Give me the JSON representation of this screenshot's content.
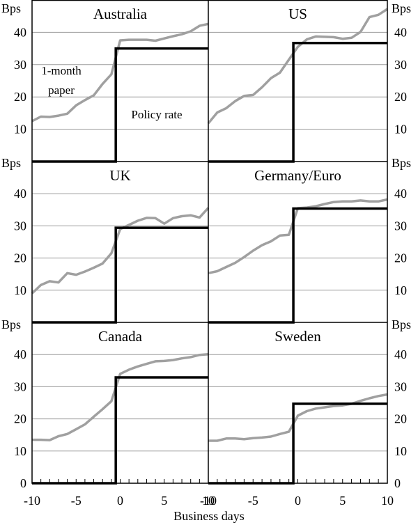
{
  "chart_data": {
    "type": "line",
    "x_label": "Business days",
    "y_unit": "Bps",
    "xlim": [
      -10,
      10
    ],
    "ylim": [
      0,
      50
    ],
    "y_ticks": [
      10,
      20,
      30,
      40
    ],
    "x_ticks": [
      -10,
      -5,
      0,
      5,
      10
    ],
    "x_tick_labels": [
      "-10",
      "-5",
      "0",
      "5",
      "10"
    ],
    "grid": "horizontal",
    "series_colors": {
      "market": "#a0a0a0",
      "policy": "#000000"
    },
    "annotations": {
      "market": "1-month paper",
      "policy": "Policy rate"
    },
    "panels": [
      {
        "title": "Australia",
        "x": [
          -10,
          -9,
          -8,
          -7,
          -6,
          -5,
          -4,
          -3,
          -2,
          -1,
          0,
          1,
          2,
          3,
          4,
          5,
          6,
          7,
          8,
          9,
          10
        ],
        "market": [
          12.5,
          13.9,
          13.8,
          14.2,
          14.8,
          17.4,
          19.0,
          20.5,
          24.0,
          27.0,
          37.5,
          37.7,
          37.7,
          37.7,
          37.4,
          38.1,
          38.8,
          39.4,
          40.3,
          42.0,
          42.6
        ],
        "policy_step_day": -0.5,
        "policy_before": 0,
        "policy_after": 35.0
      },
      {
        "title": "US",
        "x": [
          -10,
          -9,
          -8,
          -7,
          -6,
          -5,
          -4,
          -3,
          -2,
          -1,
          0,
          1,
          2,
          3,
          4,
          5,
          6,
          7,
          8,
          9,
          10
        ],
        "market": [
          11.8,
          15.2,
          16.5,
          18.7,
          20.3,
          20.6,
          23.0,
          25.8,
          27.5,
          31.5,
          35.5,
          37.8,
          38.7,
          38.6,
          38.5,
          38.0,
          38.3,
          40.1,
          44.7,
          45.4,
          47.2
        ],
        "policy_step_day": -0.5,
        "policy_before": 0,
        "policy_after": 36.7
      },
      {
        "title": "UK",
        "x": [
          -10,
          -9,
          -8,
          -7,
          -6,
          -5,
          -4,
          -3,
          -2,
          -1,
          0,
          1,
          2,
          3,
          4,
          5,
          6,
          7,
          8,
          9,
          10
        ],
        "market": [
          9.0,
          11.6,
          12.8,
          12.4,
          15.3,
          14.8,
          15.8,
          17.0,
          18.3,
          21.5,
          29.0,
          30.3,
          31.6,
          32.5,
          32.4,
          30.7,
          32.4,
          33.0,
          33.3,
          32.6,
          35.6
        ],
        "policy_step_day": -0.5,
        "policy_before": 0,
        "policy_after": 29.4
      },
      {
        "title": "Germany/Euro",
        "x": [
          -10,
          -9,
          -8,
          -7,
          -6,
          -5,
          -4,
          -3,
          -2,
          -1,
          0,
          1,
          2,
          3,
          4,
          5,
          6,
          7,
          8,
          9,
          10
        ],
        "market": [
          15.3,
          15.9,
          17.2,
          18.5,
          20.3,
          22.3,
          24.0,
          25.2,
          27.0,
          27.2,
          35.5,
          35.7,
          36.1,
          36.8,
          37.4,
          37.6,
          37.6,
          37.9,
          37.6,
          37.6,
          38.2
        ],
        "policy_step_day": -0.5,
        "policy_before": 0,
        "policy_after": 35.4
      },
      {
        "title": "Canada",
        "x": [
          -10,
          -9,
          -8,
          -7,
          -6,
          -5,
          -4,
          -3,
          -2,
          -1,
          0,
          1,
          2,
          3,
          4,
          5,
          6,
          7,
          8,
          9,
          10
        ],
        "market": [
          13.5,
          13.5,
          13.4,
          14.6,
          15.3,
          16.8,
          18.3,
          20.7,
          23.0,
          25.5,
          34.0,
          35.3,
          36.3,
          37.1,
          37.9,
          38.0,
          38.3,
          38.8,
          39.2,
          39.9,
          40.1
        ],
        "policy_step_day": -0.5,
        "policy_before": 0,
        "policy_after": 32.9
      },
      {
        "title": "Sweden",
        "x": [
          -10,
          -9,
          -8,
          -7,
          -6,
          -5,
          -4,
          -3,
          -2,
          -1,
          0,
          1,
          2,
          3,
          4,
          5,
          6,
          7,
          8,
          9,
          10
        ],
        "market": [
          13.2,
          13.2,
          13.9,
          13.9,
          13.7,
          14.0,
          14.2,
          14.5,
          15.3,
          16.0,
          21.0,
          22.4,
          23.2,
          23.6,
          24.0,
          24.2,
          24.7,
          25.6,
          26.4,
          27.1,
          27.6
        ],
        "policy_step_day": -0.5,
        "policy_before": 0,
        "policy_after": 24.7
      }
    ]
  }
}
